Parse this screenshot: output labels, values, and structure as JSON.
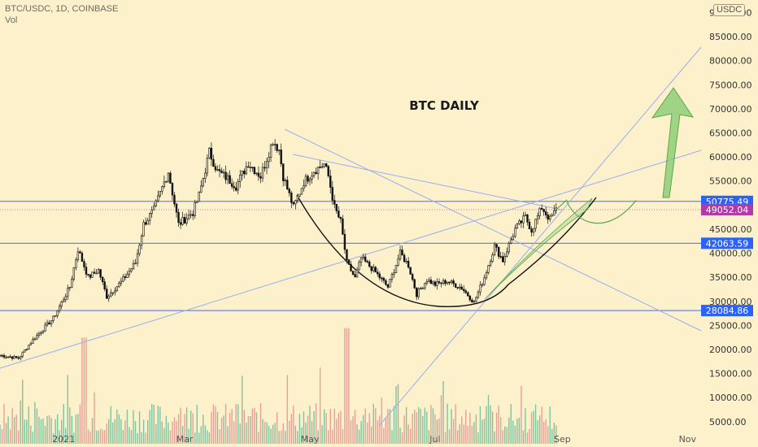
{
  "header": {
    "symbol": "BTC/USDC, 1D, COINBASE",
    "volume_label": "Vol",
    "currency": "USDC"
  },
  "annotation": {
    "text": "BTC DAILY"
  },
  "colors": {
    "background": "#fdf1cc",
    "horizontal_line": "#6b86e8",
    "trend_line": "#97aef0",
    "up_volume": "#7fc3a0",
    "down_volume": "#e89f98",
    "projection": "#5aa84c",
    "label_blue": "#2962ff",
    "label_last": "#b03aa6"
  },
  "chart_data": {
    "type": "candlestick",
    "title": "BTC DAILY",
    "x_axis": {
      "ticks": [
        "2021",
        "Mar",
        "May",
        "Jul",
        "Sep",
        "Nov"
      ],
      "range": [
        "2020-12-01",
        "2021-11-05"
      ]
    },
    "y_axis": {
      "range": [
        4000,
        90000
      ],
      "ticks": [
        5000,
        10000,
        15000,
        20000,
        25000,
        30000,
        35000,
        40000,
        45000,
        50000,
        55000,
        60000,
        65000,
        70000,
        75000,
        80000,
        85000,
        90000
      ],
      "tick_labels": [
        "5000.00",
        "10000.00",
        "15000.00",
        "20000.00",
        "25000.00",
        "30000.00",
        "35000.00",
        "40000.00",
        "45000.00",
        "50000.00",
        "55000.00",
        "60000.00",
        "65000.00",
        "70000.00",
        "75000.00",
        "80000.00",
        "85000.00",
        "90000.00"
      ]
    },
    "price_levels": [
      {
        "label": "50775.49",
        "value": 50775.49,
        "kind": "horizontal"
      },
      {
        "label": "42063.59",
        "value": 42063.59,
        "kind": "horizontal"
      },
      {
        "label": "28084.86",
        "value": 28084.86,
        "kind": "horizontal"
      },
      {
        "label": "49052.04",
        "value": 49052.04,
        "kind": "last"
      }
    ],
    "price_path": [
      [
        "2020-12-01",
        18800
      ],
      [
        "2020-12-10",
        18200
      ],
      [
        "2020-12-17",
        22000
      ],
      [
        "2020-12-27",
        26500
      ],
      [
        "2021-01-04",
        33000
      ],
      [
        "2021-01-08",
        40800
      ],
      [
        "2021-01-13",
        35000
      ],
      [
        "2021-01-18",
        36500
      ],
      [
        "2021-01-22",
        31000
      ],
      [
        "2021-01-29",
        34000
      ],
      [
        "2021-02-05",
        38000
      ],
      [
        "2021-02-09",
        46000
      ],
      [
        "2021-02-14",
        49000
      ],
      [
        "2021-02-21",
        57000
      ],
      [
        "2021-02-26",
        46000
      ],
      [
        "2021-03-05",
        48500
      ],
      [
        "2021-03-08",
        52000
      ],
      [
        "2021-03-13",
        61000
      ],
      [
        "2021-03-17",
        57000
      ],
      [
        "2021-03-22",
        55500
      ],
      [
        "2021-03-26",
        54000
      ],
      [
        "2021-04-01",
        58800
      ],
      [
        "2021-04-07",
        56000
      ],
      [
        "2021-04-13",
        63500
      ],
      [
        "2021-04-16",
        61500
      ],
      [
        "2021-04-18",
        56000
      ],
      [
        "2021-04-23",
        49500
      ],
      [
        "2021-04-28",
        54800
      ],
      [
        "2021-05-03",
        57200
      ],
      [
        "2021-05-08",
        58500
      ],
      [
        "2021-05-10",
        56000
      ],
      [
        "2021-05-13",
        49500
      ],
      [
        "2021-05-16",
        46500
      ],
      [
        "2021-05-19",
        38000
      ],
      [
        "2021-05-23",
        34800
      ],
      [
        "2021-05-26",
        39000
      ],
      [
        "2021-06-01",
        36500
      ],
      [
        "2021-06-08",
        33000
      ],
      [
        "2021-06-14",
        40000
      ],
      [
        "2021-06-18",
        37500
      ],
      [
        "2021-06-22",
        31500
      ],
      [
        "2021-06-27",
        34500
      ],
      [
        "2021-07-01",
        33500
      ],
      [
        "2021-07-07",
        34200
      ],
      [
        "2021-07-14",
        32800
      ],
      [
        "2021-07-20",
        29800
      ],
      [
        "2021-07-25",
        35000
      ],
      [
        "2021-07-30",
        41500
      ],
      [
        "2021-08-03",
        38500
      ],
      [
        "2021-08-09",
        45000
      ],
      [
        "2021-08-14",
        47500
      ],
      [
        "2021-08-17",
        44800
      ],
      [
        "2021-08-22",
        49500
      ],
      [
        "2021-08-26",
        47000
      ],
      [
        "2021-08-29",
        49052
      ]
    ],
    "volume_spikes": [
      {
        "date": "2021-01-11",
        "value": 23000
      },
      {
        "date": "2021-05-19",
        "value": 25000
      }
    ],
    "volume_typical": 7000,
    "projection": {
      "path": [
        [
          "2021-08-29",
          49052
        ],
        [
          "2021-09-03",
          51000
        ],
        [
          "2021-09-19",
          45500
        ],
        [
          "2021-10-07",
          51000
        ],
        [
          "2021-10-12",
          70000
        ]
      ],
      "arrow": "up"
    }
  }
}
